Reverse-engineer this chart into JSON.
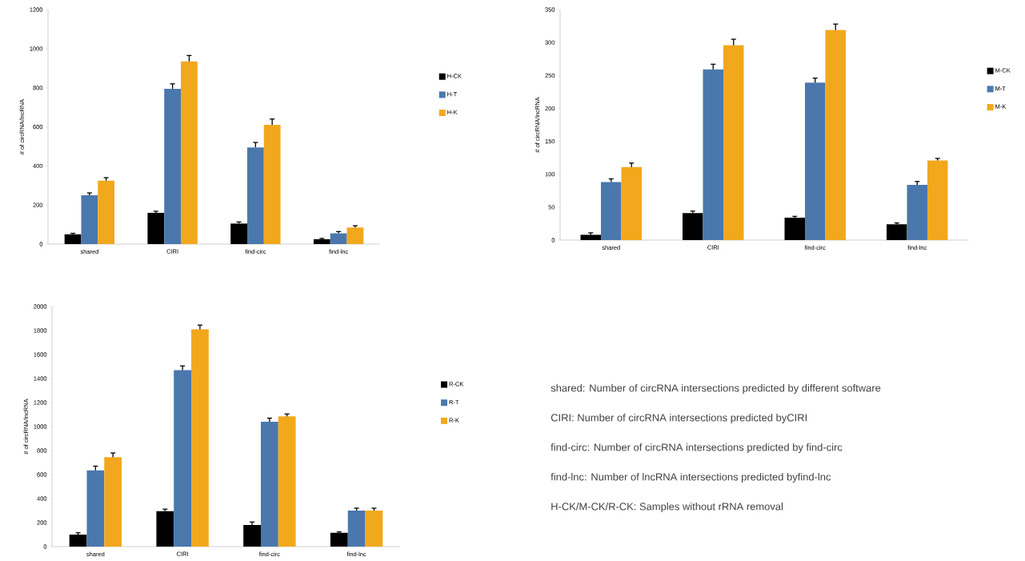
{
  "chart_data": [
    {
      "type": "bar",
      "ylabel": "# of circRNA/lncRNA",
      "categories": [
        "shared",
        "CIRI",
        "find-circ",
        "find-lnc"
      ],
      "ylim": [
        0,
        1200
      ],
      "yticks": [
        0,
        200,
        400,
        600,
        800,
        1000,
        1200
      ],
      "legend": "right",
      "series": [
        {
          "name": "H-CK",
          "color": "#000000",
          "values": [
            50,
            160,
            105,
            25
          ],
          "errors": [
            [
              50,
              55
            ],
            [
              160,
              168
            ],
            [
              105,
              113
            ],
            [
              25,
              29
            ]
          ]
        },
        {
          "name": "H-T",
          "color": "#4a78ad",
          "values": [
            250,
            795,
            495,
            55
          ],
          "errors": [
            [
              250,
              262
            ],
            [
              795,
              820
            ],
            [
              495,
              520
            ],
            [
              55,
              64
            ]
          ]
        },
        {
          "name": "H-K",
          "color": "#f2a81d",
          "values": [
            325,
            935,
            610,
            85
          ],
          "errors": [
            [
              325,
              340
            ],
            [
              935,
              965
            ],
            [
              610,
              640
            ],
            [
              85,
              94
            ]
          ]
        }
      ]
    },
    {
      "type": "bar",
      "ylabel": "# of circRNA/lncRNA",
      "categories": [
        "shared",
        "CIRI",
        "find-circ",
        "find-lnc"
      ],
      "ylim": [
        0,
        350
      ],
      "yticks": [
        0,
        50,
        100,
        150,
        200,
        250,
        300,
        350
      ],
      "legend": "right",
      "series": [
        {
          "name": "M-CK",
          "color": "#000000",
          "values": [
            8,
            41,
            34,
            24
          ],
          "errors": [
            [
              8,
              11
            ],
            [
              41,
              44
            ],
            [
              34,
              36
            ],
            [
              24,
              26
            ]
          ]
        },
        {
          "name": "M-T",
          "color": "#4a78ad",
          "values": [
            88,
            259,
            239,
            84
          ],
          "errors": [
            [
              88,
              93
            ],
            [
              259,
              267
            ],
            [
              239,
              246
            ],
            [
              84,
              89
            ]
          ]
        },
        {
          "name": "M-K",
          "color": "#f2a81d",
          "values": [
            111,
            296,
            319,
            121
          ],
          "errors": [
            [
              111,
              117
            ],
            [
              296,
              305
            ],
            [
              319,
              328
            ],
            [
              121,
              124
            ]
          ]
        }
      ]
    },
    {
      "type": "bar",
      "ylabel": "# of circRNA/lncRNA",
      "categories": [
        "shared",
        "CIRI",
        "find-circ",
        "find-lnc"
      ],
      "ylim": [
        0,
        2000
      ],
      "yticks": [
        0,
        200,
        400,
        600,
        800,
        1000,
        1200,
        1400,
        1600,
        1800,
        2000
      ],
      "legend": "right",
      "series": [
        {
          "name": "R-CK",
          "color": "#000000",
          "values": [
            100,
            295,
            180,
            115
          ],
          "errors": [
            [
              100,
              115
            ],
            [
              295,
              312
            ],
            [
              180,
              205
            ],
            [
              115,
              123
            ]
          ]
        },
        {
          "name": "R-T",
          "color": "#4a78ad",
          "values": [
            635,
            1470,
            1040,
            300
          ],
          "errors": [
            [
              635,
              670
            ],
            [
              1470,
              1505
            ],
            [
              1040,
              1070
            ],
            [
              300,
              320
            ]
          ]
        },
        {
          "name": "R-K",
          "color": "#f2a81d",
          "values": [
            745,
            1810,
            1085,
            300
          ],
          "errors": [
            [
              745,
              780
            ],
            [
              1810,
              1845
            ],
            [
              1085,
              1105
            ],
            [
              300,
              320
            ]
          ]
        }
      ]
    },
    {
      "type": "other",
      "annotations": [
        "shared: Number of circRNA intersections predicted by different software",
        "CIRI: Number of circRNA intersections predicted byCIRI",
        "find-circ: Number of circRNA intersections predicted by find-circ",
        "find-lnc: Number of lncRNA intersections predicted byfind-lnc",
        "H-CK/M-CK/R-CK: Samples without rRNA removal"
      ]
    }
  ]
}
